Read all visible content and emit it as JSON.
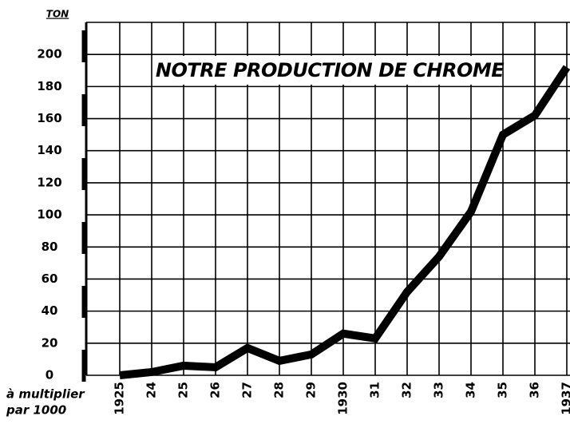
{
  "chart_data": {
    "type": "line",
    "title": "NOTRE PRODUCTION DE CHROME",
    "y_unit": "TON",
    "note": [
      "à multiplier",
      "par 1000"
    ],
    "categories": [
      "1925",
      "24",
      "25",
      "26",
      "27",
      "28",
      "29",
      "1930",
      "31",
      "32",
      "33",
      "34",
      "35",
      "36",
      "1937"
    ],
    "values": [
      0,
      2,
      6,
      5,
      17,
      9,
      13,
      26,
      23,
      52,
      74,
      102,
      150,
      162,
      192
    ],
    "color": "#000000",
    "ylim": [
      0,
      220
    ],
    "yticks": [
      0,
      20,
      40,
      60,
      80,
      100,
      120,
      140,
      160,
      180,
      200
    ],
    "grid": true
  }
}
